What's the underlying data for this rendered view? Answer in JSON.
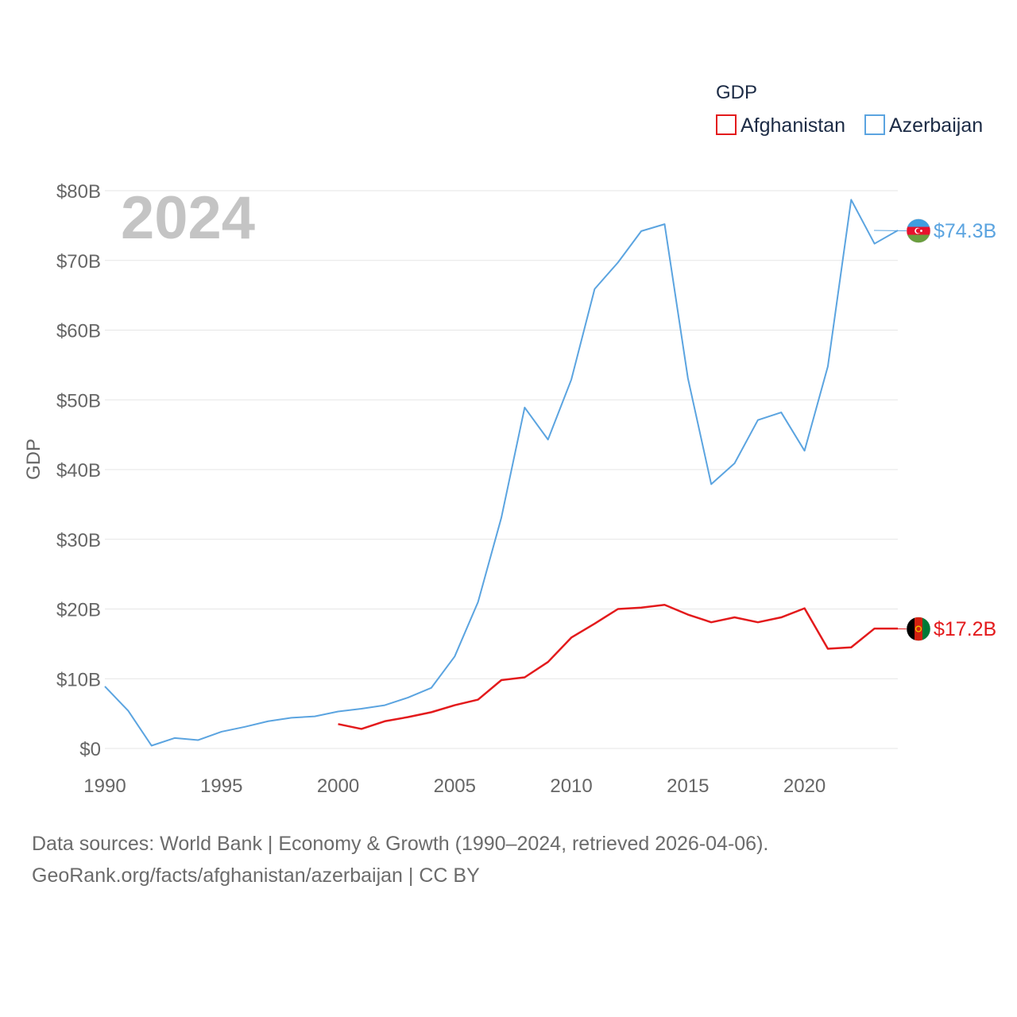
{
  "chart_data": {
    "type": "line",
    "title": "2024",
    "ylabel": "GDP",
    "xlabel": "",
    "xlim": [
      1990,
      2024
    ],
    "ylim": [
      0,
      80
    ],
    "y_unit": "billion USD",
    "y_ticks": [
      0,
      10,
      20,
      30,
      40,
      50,
      60,
      70,
      80
    ],
    "y_tick_labels": [
      "$0",
      "$10B",
      "$20B",
      "$30B",
      "$40B",
      "$50B",
      "$60B",
      "$70B",
      "$80B"
    ],
    "x_ticks": [
      1990,
      1995,
      2000,
      2005,
      2010,
      2015,
      2020
    ],
    "x_tick_labels": [
      "1990",
      "1995",
      "2000",
      "2005",
      "2010",
      "2015",
      "2020"
    ],
    "grid": true,
    "legend": {
      "title": "GDP",
      "position": "top-right"
    },
    "series": [
      {
        "name": "Afghanistan",
        "color": "#e31a1c",
        "flag": "afghanistan-flag-icon",
        "end_label": "$17.2B",
        "x": [
          2000,
          2001,
          2002,
          2003,
          2004,
          2005,
          2006,
          2007,
          2008,
          2009,
          2010,
          2011,
          2012,
          2013,
          2014,
          2015,
          2016,
          2017,
          2018,
          2019,
          2020,
          2021,
          2022,
          2023,
          2024
        ],
        "values": [
          3.5,
          2.8,
          3.9,
          4.5,
          5.2,
          6.2,
          7.0,
          9.8,
          10.2,
          12.4,
          15.9,
          17.9,
          20.0,
          20.2,
          20.6,
          19.2,
          18.1,
          18.8,
          18.1,
          18.8,
          20.1,
          14.3,
          14.5,
          17.2,
          17.2
        ]
      },
      {
        "name": "Azerbaijan",
        "color": "#5ba4e0",
        "flag": "azerbaijan-flag-icon",
        "end_label": "$74.3B",
        "x": [
          1990,
          1991,
          1992,
          1993,
          1994,
          1995,
          1996,
          1997,
          1998,
          1999,
          2000,
          2001,
          2002,
          2003,
          2004,
          2005,
          2006,
          2007,
          2008,
          2009,
          2010,
          2011,
          2012,
          2013,
          2014,
          2015,
          2016,
          2017,
          2018,
          2019,
          2020,
          2021,
          2022,
          2023,
          2024
        ],
        "values": [
          8.9,
          5.4,
          0.4,
          1.5,
          1.2,
          2.4,
          3.1,
          3.9,
          4.4,
          4.6,
          5.3,
          5.7,
          6.2,
          7.3,
          8.7,
          13.2,
          21.0,
          33.1,
          48.9,
          44.3,
          52.9,
          65.9,
          69.7,
          74.2,
          75.2,
          53.1,
          37.9,
          40.9,
          47.1,
          48.2,
          42.7,
          54.8,
          78.7,
          72.4,
          74.3
        ]
      }
    ]
  },
  "footer": {
    "line1": "Data sources: World Bank | Economy & Growth (1990–2024, retrieved 2026-04-06).",
    "line2": "GeoRank.org/facts/afghanistan/azerbaijan | CC BY"
  }
}
